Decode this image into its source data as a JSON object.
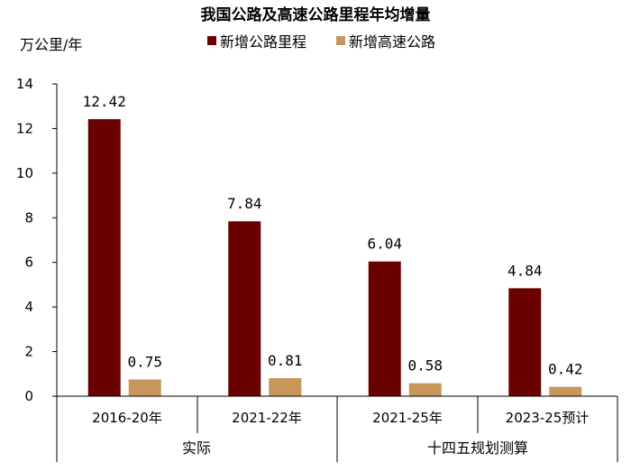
{
  "chart_data": {
    "type": "bar",
    "title": "我国公路及高速公路里程年均增量",
    "ylabel": "万公里/年",
    "ylim": [
      0,
      14
    ],
    "yticks": [
      0,
      2,
      4,
      6,
      8,
      10,
      12,
      14
    ],
    "categories": [
      "2016-20年",
      "2021-22年",
      "2021-25年",
      "2023-25预计"
    ],
    "groups": [
      {
        "label": "实际",
        "categories": [
          "2016-20年",
          "2021-22年"
        ]
      },
      {
        "label": "十四五规划测算",
        "categories": [
          "2021-25年",
          "2023-25预计"
        ]
      }
    ],
    "series": [
      {
        "name": "新增公路里程",
        "color": "#6b0000",
        "values": [
          12.42,
          7.84,
          6.04,
          4.84
        ],
        "labels": [
          "12.42",
          "7.84",
          "6.04",
          "4.84"
        ]
      },
      {
        "name": "新增高速公路",
        "color": "#c8965a",
        "values": [
          0.75,
          0.81,
          0.58,
          0.42
        ],
        "labels": [
          "0.75",
          "0.81",
          "0.58",
          "0.42"
        ]
      }
    ],
    "legend_position": "top",
    "grid": false
  }
}
